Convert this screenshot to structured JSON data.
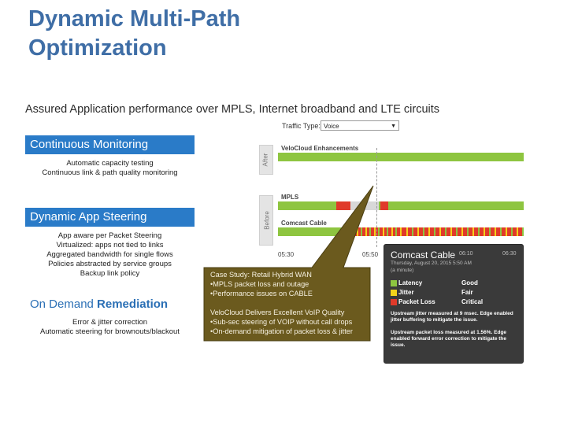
{
  "title_line1": "Dynamic Multi-Path",
  "title_line2": "Optimization",
  "subtitle": "Assured Application performance over MPLS, Internet broadband and LTE circuits",
  "sections": [
    {
      "heading": "Continuous Monitoring",
      "lines": [
        "Automatic capacity testing",
        "Continuous link & path quality monitoring"
      ]
    },
    {
      "heading": "Dynamic App Steering",
      "lines": [
        "App aware per Packet Steering",
        "Virtualized: apps not tied to links",
        "Aggregated bandwidth for single flows",
        "Policies abstracted by service groups",
        "Backup link policy"
      ]
    },
    {
      "heading_plain": "On Demand ",
      "heading_bold": "Remediation",
      "lines": [
        "Error & jitter correction",
        "Automatic steering for brownouts/blackout"
      ]
    }
  ],
  "dashboard": {
    "traffic_type_label": "Traffic Type:",
    "traffic_type_value": "Voice",
    "after_tab": "After",
    "before_tab": "Before",
    "lanes": [
      "VeloCloud Enhancements",
      "MPLS",
      "Comcast Cable"
    ],
    "time_labels": [
      "05:30",
      "05:50",
      "06:10",
      "06:30"
    ]
  },
  "popup": {
    "title": "Comcast Cable",
    "date": "Thursday, August 20, 2015 5:50 AM",
    "sub": "(a minute)",
    "corner_time": "06:30",
    "metrics": [
      {
        "name": "Latency",
        "value": "Good",
        "color": "#8ec540"
      },
      {
        "name": "Jitter",
        "value": "Fair",
        "color": "#f2d31b"
      },
      {
        "name": "Packet Loss",
        "value": "Critical",
        "color": "#e03a2a"
      }
    ],
    "note1": "Upstream jitter measured at 9 msec. Edge enabled jitter buffering to mitigate the issue.",
    "note2": "Upstream packet loss measured at 1.56%. Edge enabled forward error correction to mitigate the issue."
  },
  "callout": {
    "lines": [
      "Case Study: Retail Hybrid WAN",
      "•MPLS packet loss and outage",
      "•Performance issues on CABLE",
      "",
      "VeloCloud Delivers Excellent VoIP Quality",
      "•Sub-sec steering of VOIP without call drops",
      "•On-demand mitigation of packet loss & jitter"
    ],
    "bg_color": "#6b5a1e"
  }
}
